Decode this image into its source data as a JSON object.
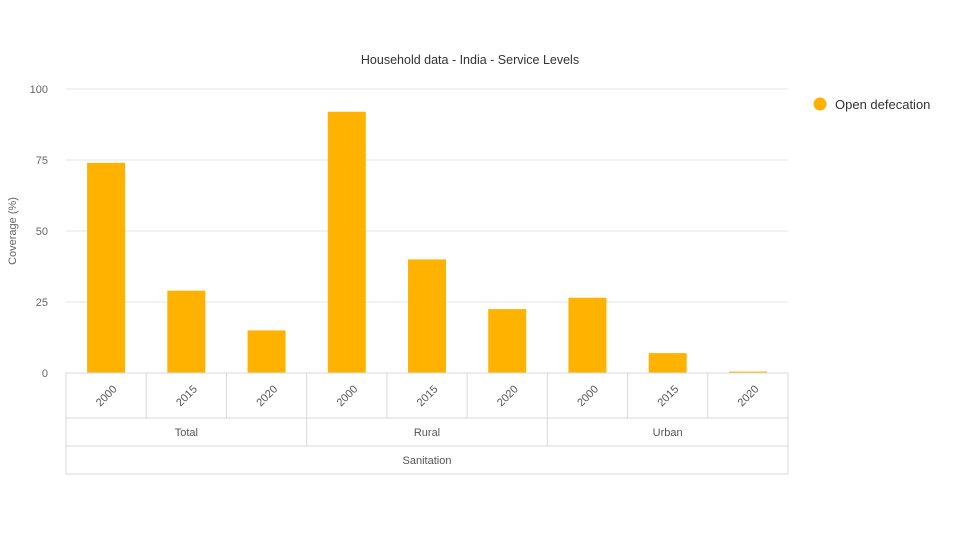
{
  "chart_data": {
    "type": "bar",
    "title": "Household data - India - Service Levels",
    "ylabel": "Coverage (%)",
    "xlabel": "",
    "ylim": [
      0,
      100
    ],
    "yticks": [
      0,
      25,
      50,
      75,
      100
    ],
    "grid": true,
    "legend_position": "top-right",
    "groups_level2": [
      "Sanitation"
    ],
    "groups_level1": [
      "Total",
      "Rural",
      "Urban"
    ],
    "categories": [
      "2000",
      "2015",
      "2020",
      "2000",
      "2015",
      "2020",
      "2000",
      "2015",
      "2020"
    ],
    "series": [
      {
        "name": "Open defecation",
        "color": "#FFB300",
        "values": [
          74,
          29,
          15,
          92,
          40,
          22.5,
          26.5,
          7,
          0.5
        ]
      }
    ]
  }
}
